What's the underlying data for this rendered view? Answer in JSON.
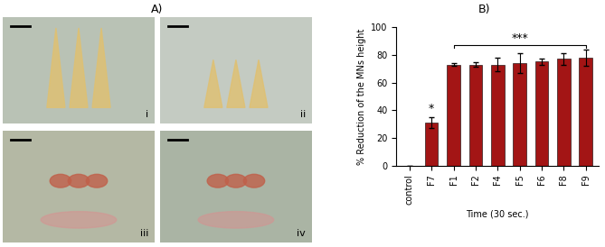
{
  "panel_a": {
    "label": "A)",
    "images": [
      "i",
      "ii",
      "iii",
      "iv"
    ]
  },
  "chart_data": {
    "type": "bar",
    "panel_label": "B)",
    "categories": [
      "control",
      "F7",
      "F1",
      "F2",
      "F4",
      "F5",
      "F6",
      "F8",
      "F9"
    ],
    "values": [
      0,
      31,
      73,
      73,
      73,
      74,
      75,
      77,
      78
    ],
    "errors": [
      0,
      4,
      1,
      1.5,
      5,
      7,
      2,
      4,
      6
    ],
    "color": "#a31515",
    "y_label": "% Reduction of the MNs height",
    "x_label": "Time (30 sec.)",
    "ylim": [
      0,
      100
    ],
    "yticks": [
      0,
      20,
      40,
      60,
      80,
      100
    ],
    "annotations": [
      {
        "text": "*",
        "category": "F7"
      },
      {
        "text": "***",
        "from": "F1",
        "to": "F9"
      }
    ]
  }
}
